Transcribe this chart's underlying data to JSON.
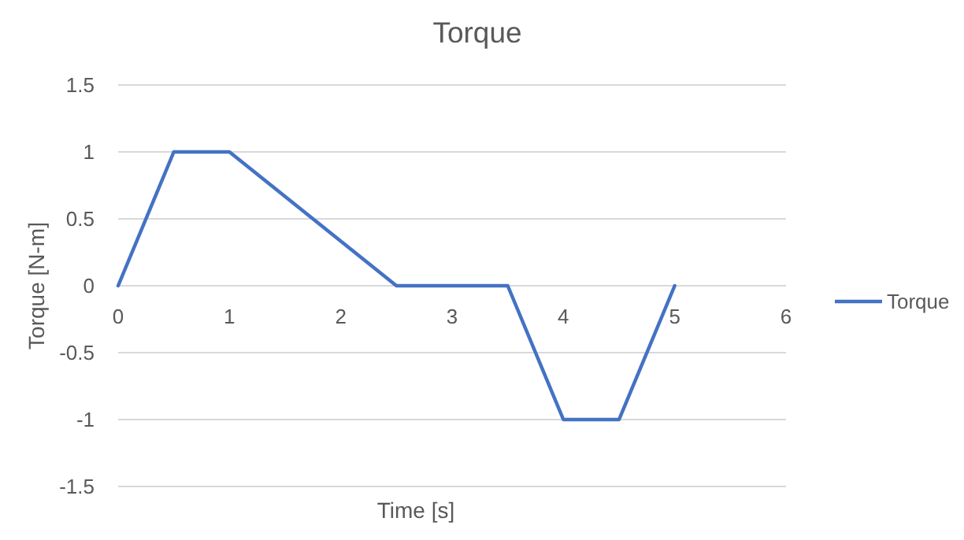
{
  "chart_data": {
    "type": "line",
    "title": "Torque",
    "xlabel": "Time [s]",
    "ylabel": "Torque [N-m]",
    "x": [
      0,
      0.5,
      1,
      2.5,
      3.5,
      4,
      4.5,
      5
    ],
    "series": [
      {
        "name": "Torque",
        "color": "#4472c4",
        "values": [
          0,
          1,
          1,
          0,
          0,
          -1,
          -1,
          0
        ]
      }
    ],
    "xlim": [
      0,
      6
    ],
    "xticks": [
      0,
      1,
      2,
      3,
      4,
      5,
      6
    ],
    "ylim": [
      -1.5,
      1.5
    ],
    "yticks": [
      -1.5,
      -1,
      -0.5,
      0,
      0.5,
      1,
      1.5
    ],
    "grid": "y",
    "legend": "right",
    "marker": "none",
    "line_style": "solid"
  }
}
